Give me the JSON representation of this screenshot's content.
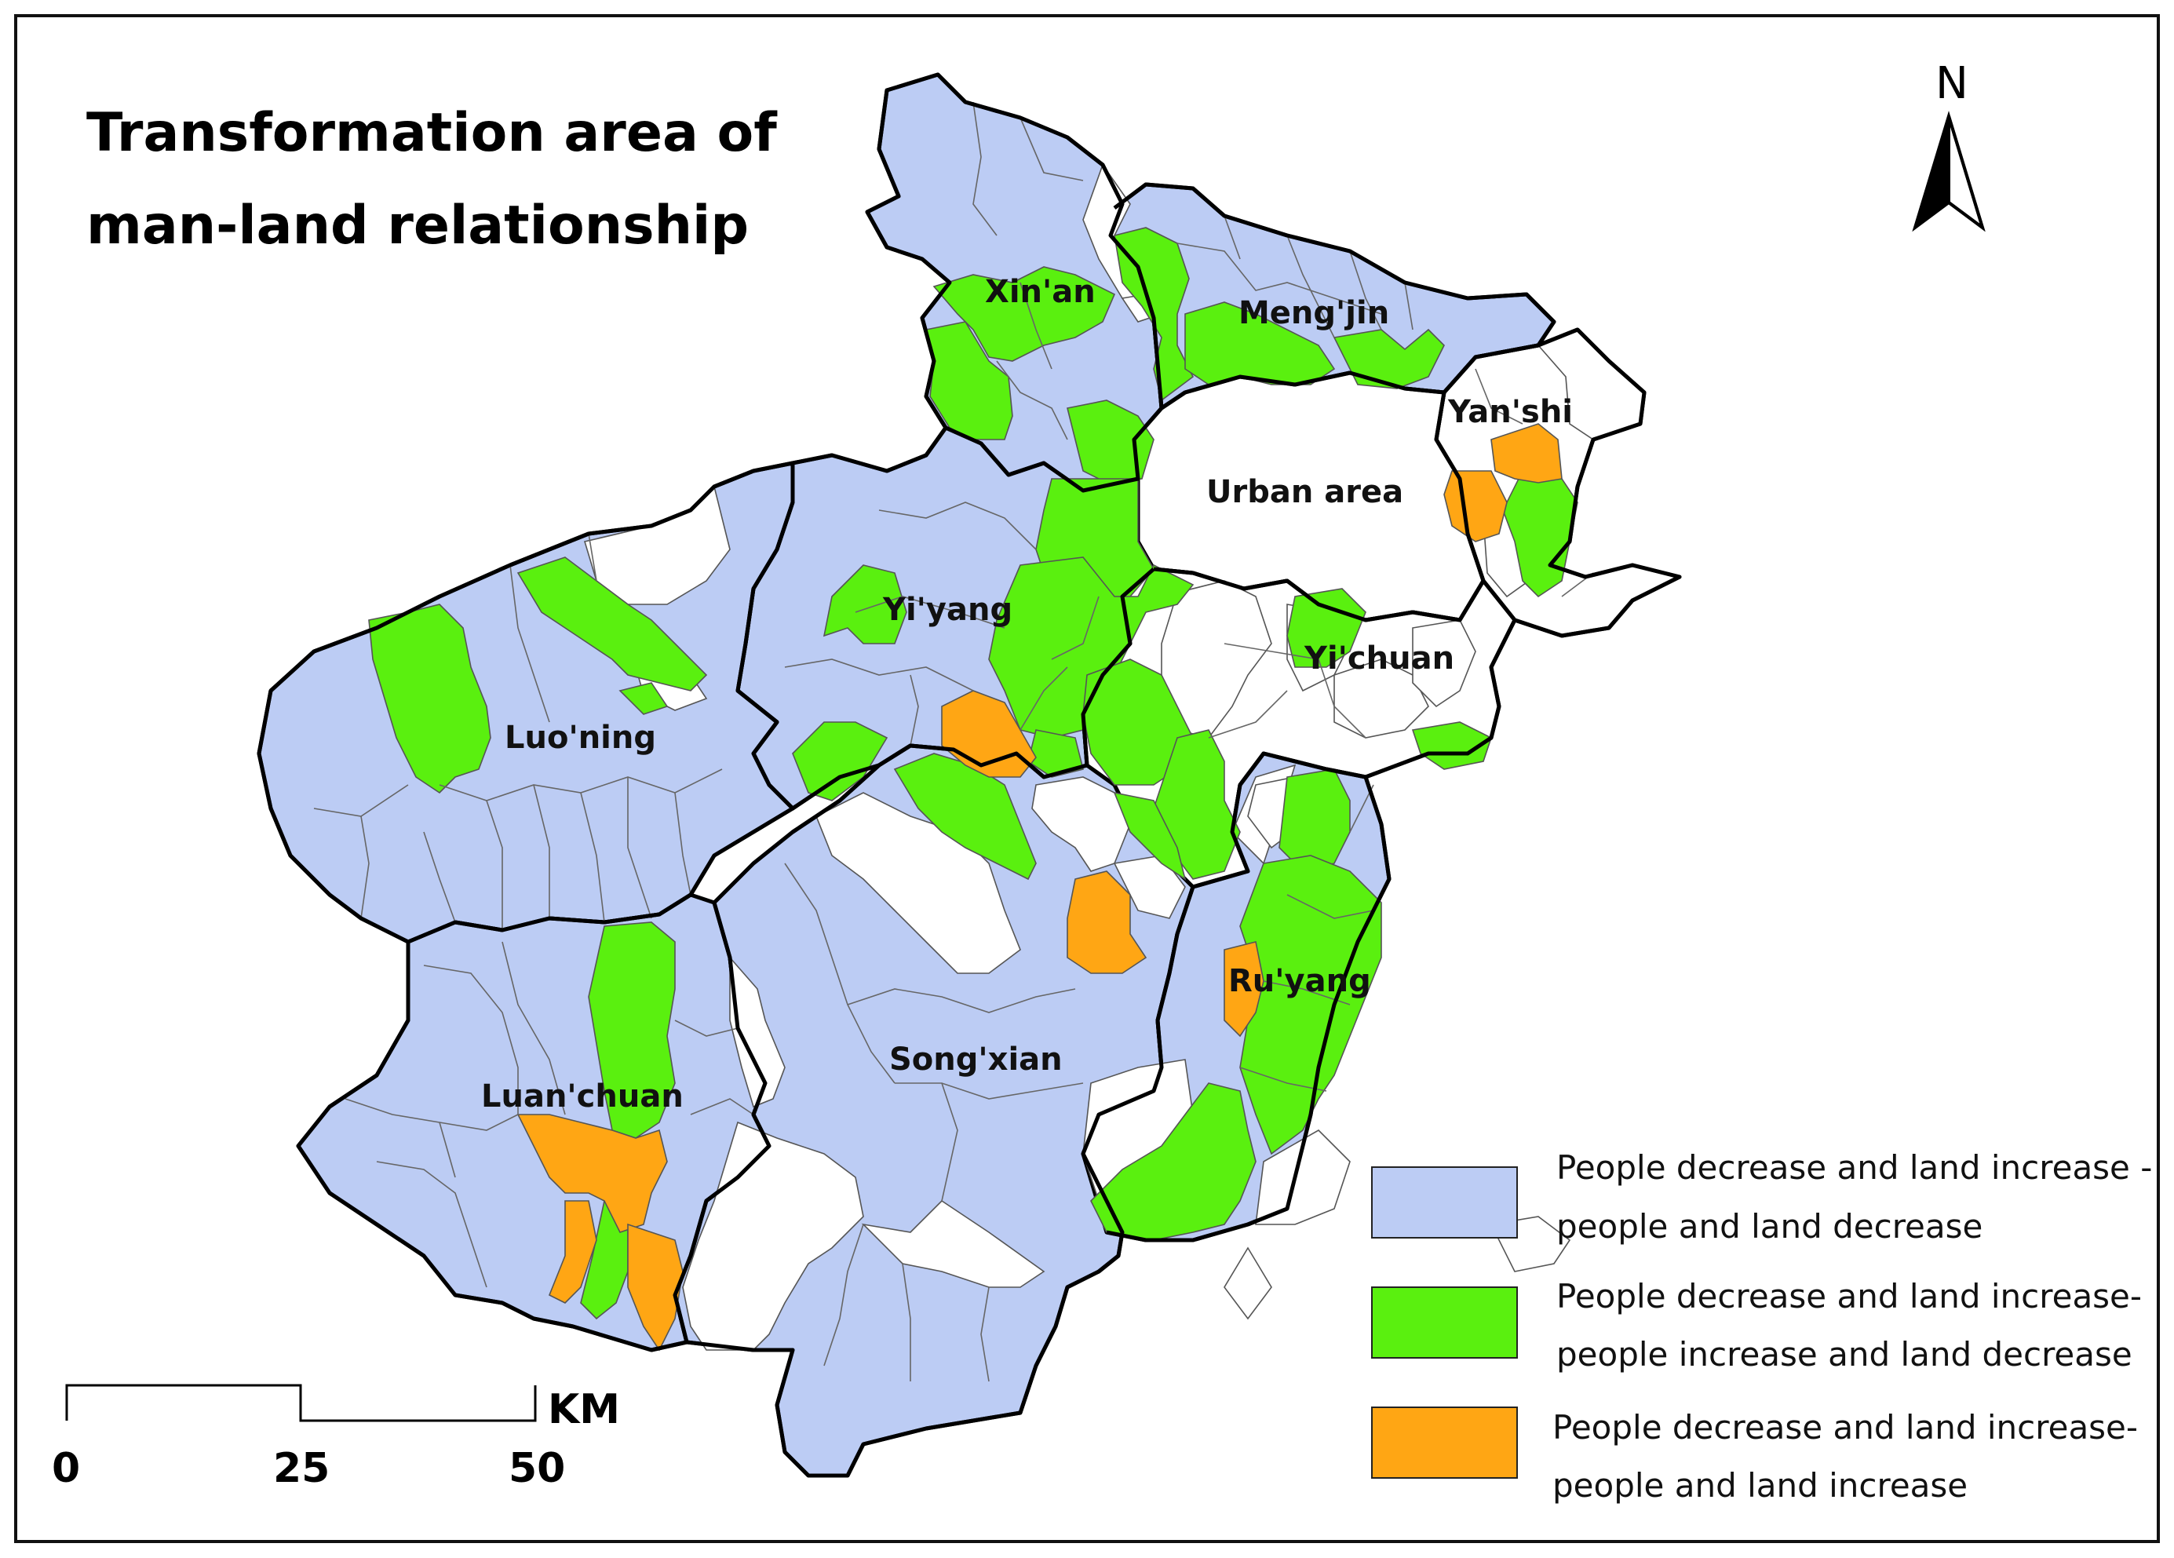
{
  "title": {
    "line1": "Transformation area of",
    "line2": "man-land relationship"
  },
  "colors": {
    "type_a": "#bcccf4",
    "type_b": "#5af00f",
    "type_c": "#ffa614",
    "unchanged": "#ffffff",
    "boundary": "#000000"
  },
  "places": [
    {
      "id": "xinan",
      "name": "Xin'an"
    },
    {
      "id": "mengjin",
      "name": "Meng'jin"
    },
    {
      "id": "yanshi",
      "name": "Yan'shi"
    },
    {
      "id": "urban",
      "name": "Urban area"
    },
    {
      "id": "yiyang",
      "name": "Yi'yang"
    },
    {
      "id": "yichuan",
      "name": "Yi'chuan"
    },
    {
      "id": "luoning",
      "name": "Luo'ning"
    },
    {
      "id": "ruyang",
      "name": "Ru'yang"
    },
    {
      "id": "songxian",
      "name": "Song'xian"
    },
    {
      "id": "luanchuan",
      "name": "Luan'chuan"
    }
  ],
  "legend": [
    {
      "color": "#bcccf4",
      "line1": "People decrease and land increase -",
      "line2": "people and land decrease"
    },
    {
      "color": "#5af00f",
      "line1": "People decrease and land increase-",
      "line2": "people increase and land decrease"
    },
    {
      "color": "#ffa614",
      "line1": "People decrease and land increase-",
      "line2": "people and land increase"
    }
  ],
  "scale": {
    "unit": "KM",
    "ticks": [
      "0",
      "25",
      "50"
    ]
  },
  "north": {
    "label": "N",
    "icon": "north-arrow-icon"
  }
}
